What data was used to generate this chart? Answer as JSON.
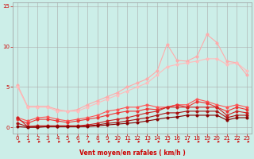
{
  "background_color": "#cceee8",
  "grid_color": "#aaaaaa",
  "xlabel": "Vent moyen/en rafales ( km/h )",
  "xlim": [
    -0.5,
    23.5
  ],
  "ylim": [
    -0.8,
    15.5
  ],
  "yticks": [
    0,
    5,
    10,
    15
  ],
  "xticks": [
    0,
    1,
    2,
    3,
    4,
    5,
    6,
    7,
    8,
    9,
    10,
    11,
    12,
    13,
    14,
    15,
    16,
    17,
    18,
    19,
    20,
    21,
    22,
    23
  ],
  "series": [
    {
      "x": [
        0,
        1,
        2,
        3,
        4,
        5,
        6,
        7,
        8,
        9,
        10,
        11,
        12,
        13,
        14,
        15,
        16,
        17,
        18,
        19,
        20,
        21,
        22,
        23
      ],
      "y": [
        5.2,
        2.6,
        2.6,
        2.6,
        2.2,
        2.0,
        2.2,
        2.8,
        3.3,
        3.8,
        4.3,
        5.0,
        5.5,
        6.0,
        7.0,
        10.3,
        8.3,
        8.2,
        8.8,
        11.5,
        10.5,
        8.2,
        8.0,
        6.5
      ],
      "color": "#ffaaaa",
      "linewidth": 0.8,
      "marker": "o",
      "markersize": 2.5
    },
    {
      "x": [
        0,
        1,
        2,
        3,
        4,
        5,
        6,
        7,
        8,
        9,
        10,
        11,
        12,
        13,
        14,
        15,
        16,
        17,
        18,
        19,
        20,
        21,
        22,
        23
      ],
      "y": [
        5.0,
        2.5,
        2.5,
        2.5,
        2.0,
        2.0,
        2.0,
        2.5,
        3.0,
        3.5,
        4.0,
        4.5,
        5.0,
        5.5,
        6.5,
        7.5,
        7.8,
        8.0,
        8.2,
        8.5,
        8.5,
        7.8,
        8.0,
        7.0
      ],
      "color": "#ffbbbb",
      "linewidth": 0.8,
      "marker": "o",
      "markersize": 2.5
    },
    {
      "x": [
        0,
        1,
        2,
        3,
        4,
        5,
        6,
        7,
        8,
        9,
        10,
        11,
        12,
        13,
        14,
        15,
        16,
        17,
        18,
        19,
        20,
        21,
        22,
        23
      ],
      "y": [
        1.2,
        0.8,
        1.2,
        1.3,
        1.0,
        0.8,
        1.0,
        1.2,
        1.5,
        2.0,
        2.2,
        2.5,
        2.5,
        2.8,
        2.5,
        2.5,
        2.8,
        2.8,
        3.5,
        3.2,
        2.8,
        2.5,
        2.8,
        2.5
      ],
      "color": "#ff5555",
      "linewidth": 0.8,
      "marker": "o",
      "markersize": 2.5
    },
    {
      "x": [
        0,
        1,
        2,
        3,
        4,
        5,
        6,
        7,
        8,
        9,
        10,
        11,
        12,
        13,
        14,
        15,
        16,
        17,
        18,
        19,
        20,
        21,
        22,
        23
      ],
      "y": [
        1.0,
        0.5,
        1.0,
        1.0,
        0.8,
        0.6,
        0.8,
        1.0,
        1.2,
        1.5,
        1.8,
        2.0,
        2.0,
        2.3,
        2.2,
        2.5,
        2.8,
        2.5,
        3.2,
        3.0,
        2.5,
        2.0,
        2.5,
        2.2
      ],
      "color": "#ee3333",
      "linewidth": 0.8,
      "marker": "o",
      "markersize": 2.5
    },
    {
      "x": [
        0,
        1,
        2,
        3,
        4,
        5,
        6,
        7,
        8,
        9,
        10,
        11,
        12,
        13,
        14,
        15,
        16,
        17,
        18,
        19,
        20,
        21,
        22,
        23
      ],
      "y": [
        1.2,
        0.1,
        0.2,
        0.2,
        0.2,
        0.2,
        0.2,
        0.3,
        0.5,
        0.8,
        1.0,
        1.2,
        1.5,
        1.8,
        2.0,
        2.5,
        2.5,
        2.5,
        2.5,
        2.5,
        2.5,
        1.5,
        2.0,
        1.8
      ],
      "color": "#cc2222",
      "linewidth": 0.8,
      "marker": "o",
      "markersize": 2.5
    },
    {
      "x": [
        0,
        1,
        2,
        3,
        4,
        5,
        6,
        7,
        8,
        9,
        10,
        11,
        12,
        13,
        14,
        15,
        16,
        17,
        18,
        19,
        20,
        21,
        22,
        23
      ],
      "y": [
        0.5,
        0.1,
        0.1,
        0.1,
        0.1,
        0.1,
        0.1,
        0.2,
        0.3,
        0.5,
        0.6,
        0.8,
        1.0,
        1.2,
        1.5,
        1.8,
        1.8,
        2.0,
        2.0,
        2.0,
        2.0,
        1.2,
        1.5,
        1.5
      ],
      "color": "#aa1111",
      "linewidth": 0.8,
      "marker": "o",
      "markersize": 2.5
    },
    {
      "x": [
        0,
        1,
        2,
        3,
        4,
        5,
        6,
        7,
        8,
        9,
        10,
        11,
        12,
        13,
        14,
        15,
        16,
        17,
        18,
        19,
        20,
        21,
        22,
        23
      ],
      "y": [
        0.1,
        0.0,
        0.0,
        0.1,
        0.1,
        0.1,
        0.1,
        0.1,
        0.2,
        0.3,
        0.4,
        0.5,
        0.6,
        0.8,
        1.0,
        1.2,
        1.3,
        1.5,
        1.5,
        1.5,
        1.5,
        0.9,
        1.2,
        1.2
      ],
      "color": "#880000",
      "linewidth": 0.8,
      "marker": "o",
      "markersize": 2.5
    }
  ],
  "arrow_color": "#cc0000",
  "label_fontsize": 5.5,
  "tick_fontsize": 5,
  "tick_color": "#cc0000"
}
